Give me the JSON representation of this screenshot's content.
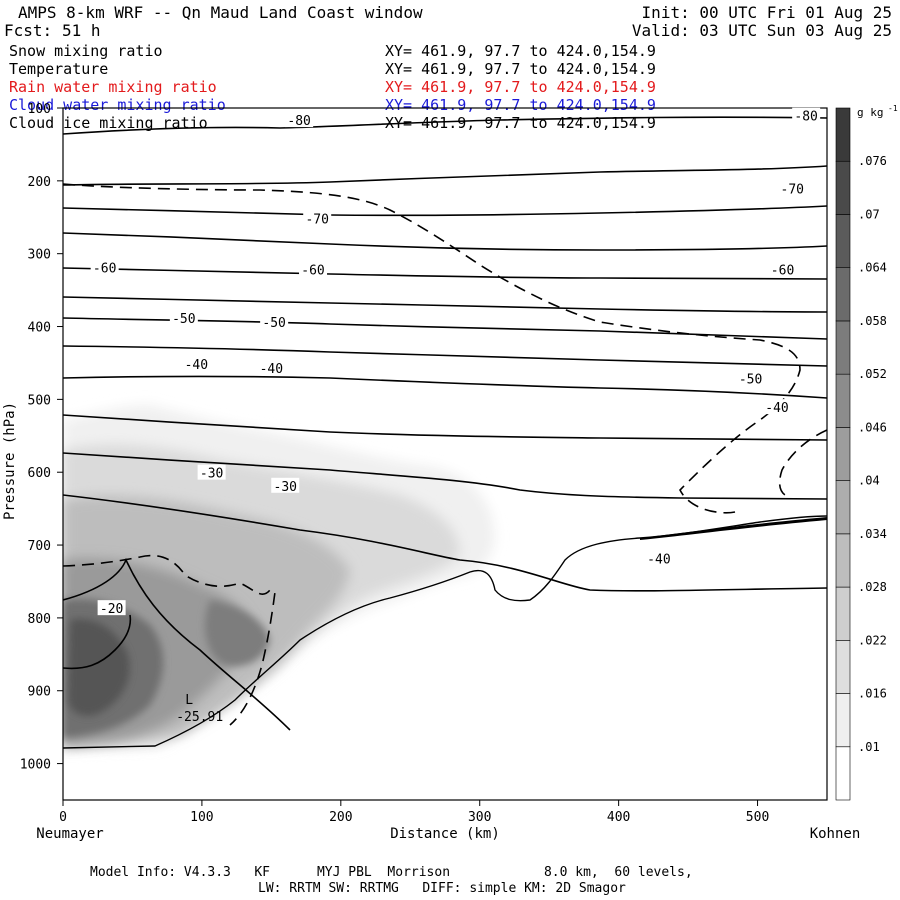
{
  "header": {
    "model_title": "AMPS 8-km WRF -- Qn Maud Land Coast window",
    "forecast_label": "Fcst:",
    "forecast_hours": "51 h",
    "init_text": "Init: 00 UTC Fri 01 Aug 25",
    "valid_text": "Valid: 03 UTC Sun 03 Aug 25"
  },
  "fields": [
    {
      "label": "Snow mixing ratio",
      "xy": "XY= 461.9, 97.7 to 424.0,154.9",
      "color": "#000000"
    },
    {
      "label": "Temperature",
      "xy": "XY= 461.9, 97.7 to 424.0,154.9",
      "color": "#000000"
    },
    {
      "label": "Rain water mixing ratio",
      "xy": "XY= 461.9, 97.7 to 424.0,154.9",
      "color": "#e31a1c"
    },
    {
      "label": "Cloud water mixing ratio",
      "xy": "XY= 461.9, 97.7 to 424.0,154.9",
      "color": "#1a1ad8"
    },
    {
      "label": "Cloud ice mixing ratio",
      "xy": "XY= 461.9, 97.7 to 424.0,154.9",
      "color": "#000000"
    }
  ],
  "footer": {
    "line1": "Model Info: V4.3.3   KF      MYJ PBL  Morrison            8.0 km,  60 levels,",
    "line2": "LW: RRTM SW: RRTMG   DIFF: simple KM: 2D Smagor"
  },
  "chart_data": {
    "type": "heatmap",
    "title": "",
    "xlabel": "Distance (km)",
    "ylabel": "Pressure (hPa)",
    "x_left_label": "Neumayer",
    "x_right_label": "Kohnen",
    "xlim": [
      0,
      550
    ],
    "ylim": [
      100,
      1050
    ],
    "x_ticks": [
      0,
      100,
      200,
      300,
      400,
      500
    ],
    "y_ticks": [
      100,
      200,
      300,
      400,
      500,
      600,
      700,
      800,
      900,
      1000
    ],
    "colorbar": {
      "unit": "g kg",
      "unit_exp": "-1",
      "levels": [
        0.01,
        0.016,
        0.022,
        0.028,
        0.034,
        0.04,
        0.046,
        0.052,
        0.058,
        0.064,
        0.07,
        0.076
      ],
      "level_labels": [
        ".01",
        ".016",
        ".022",
        ".028",
        ".034",
        ".04",
        ".046",
        ".052",
        ".058",
        ".064",
        ".07",
        ".076"
      ]
    },
    "temperature_isotherms_degC": [
      -80,
      -70,
      -60,
      -50,
      -40,
      -30,
      -20
    ],
    "minimum_label": {
      "letter": "L",
      "value": "-25.91",
      "x_km": 88,
      "p_hPa": 935
    },
    "isotherm_labels": [
      {
        "text": "-80",
        "x_km": 170,
        "p_hPa": 118
      },
      {
        "text": "-80",
        "x_km": 535,
        "p_hPa": 112
      },
      {
        "text": "-70",
        "x_km": 183,
        "p_hPa": 253
      },
      {
        "text": "-70",
        "x_km": 525,
        "p_hPa": 212
      },
      {
        "text": "-60",
        "x_km": 30,
        "p_hPa": 320
      },
      {
        "text": "-60",
        "x_km": 180,
        "p_hPa": 323
      },
      {
        "text": "-60",
        "x_km": 518,
        "p_hPa": 323
      },
      {
        "text": "-50",
        "x_km": 87,
        "p_hPa": 390
      },
      {
        "text": "-50",
        "x_km": 152,
        "p_hPa": 395
      },
      {
        "text": "-50",
        "x_km": 495,
        "p_hPa": 473
      },
      {
        "text": "-40",
        "x_km": 96,
        "p_hPa": 453
      },
      {
        "text": "-40",
        "x_km": 150,
        "p_hPa": 458
      },
      {
        "text": "-40",
        "x_km": 514,
        "p_hPa": 512
      },
      {
        "text": "-40",
        "x_km": 429,
        "p_hPa": 720
      },
      {
        "text": "-30",
        "x_km": 107,
        "p_hPa": 602
      },
      {
        "text": "-30",
        "x_km": 160,
        "p_hPa": 620
      },
      {
        "text": "-20",
        "x_km": 35,
        "p_hPa": 788
      }
    ]
  }
}
